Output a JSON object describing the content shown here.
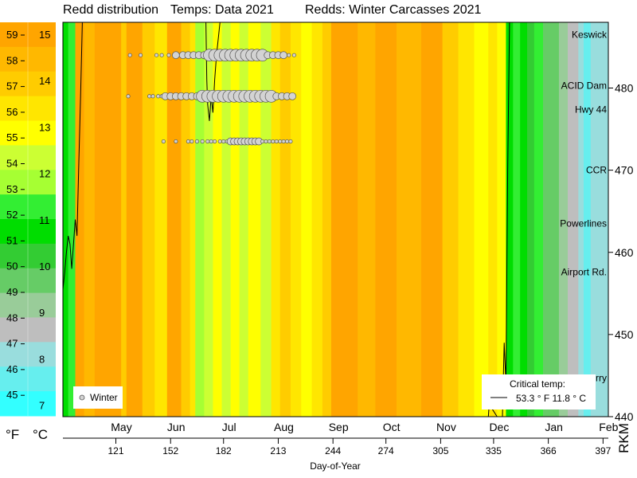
{
  "header": {
    "title": "Redd distribution",
    "temps": "Temps: Data 2021",
    "redds": "Redds: Winter Carcasses 2021"
  },
  "colors": {
    "orange": "#ffa500",
    "yellow": "#ffff00",
    "green": "#00e000",
    "gray": "#bebebe",
    "cyan": "#00ffff",
    "redd_fill": "#d3d3d3"
  },
  "legend_scale": {
    "f_label": "°F",
    "c_label": "°C",
    "f_ticks": [
      "59",
      "58",
      "57",
      "56",
      "55",
      "54",
      "53",
      "52",
      "51",
      "50",
      "49",
      "48",
      "47",
      "46",
      "45"
    ],
    "c_ticks": [
      "15",
      "14",
      "13",
      "12",
      "11",
      "10",
      "9",
      "8",
      "7"
    ],
    "bands": [
      "#ffa500",
      "#ffb800",
      "#ffcc00",
      "#ffe600",
      "#ffff00",
      "#ccff33",
      "#a6ff33",
      "#33ee33",
      "#00dd00",
      "#33cc33",
      "#66cc66",
      "#99cc99",
      "#bebebe",
      "#99dddd",
      "#66eeee",
      "#33ffff"
    ]
  },
  "landmarks": [
    "Keswick",
    "ACID Dam",
    "Hwy 44",
    "CCR",
    "Powerlines",
    "Airport Rd.",
    "Balls Ferry"
  ],
  "legend": {
    "series": "Winter"
  },
  "critical": {
    "title": "Critical temp:",
    "value": "53.3 ° F   11.8 ° C"
  },
  "chart_data": {
    "type": "heatmap",
    "title": "Redd distribution",
    "xlabel": "Day-of-Year",
    "ylabel": "RKM",
    "xlim": [
      91,
      400
    ],
    "ylim": [
      440,
      488
    ],
    "x_ticks": [
      121,
      152,
      182,
      213,
      244,
      274,
      305,
      335,
      366,
      397
    ],
    "month_ticks": [
      "May",
      "Jun",
      "Jul",
      "Aug",
      "Sep",
      "Oct",
      "Nov",
      "Dec",
      "Jan",
      "Feb"
    ],
    "y_ticks": [
      440,
      450,
      460,
      470,
      480
    ],
    "color_scale_f": [
      45,
      59
    ],
    "color_scale_c": [
      7,
      15
    ],
    "critical_temp_f": 53.3,
    "critical_temp_c": 11.8,
    "heat_columns": [
      {
        "x0": 91,
        "x1": 94,
        "color": "#00dd00"
      },
      {
        "x0": 94,
        "x1": 98,
        "color": "#33ee33"
      },
      {
        "x0": 98,
        "x1": 103,
        "color": "#ffa500"
      },
      {
        "x0": 103,
        "x1": 109,
        "color": "#ffb800"
      },
      {
        "x0": 109,
        "x1": 124,
        "color": "#ffa500"
      },
      {
        "x0": 124,
        "x1": 127,
        "color": "#ffcc00"
      },
      {
        "x0": 127,
        "x1": 136,
        "color": "#ffa500"
      },
      {
        "x0": 136,
        "x1": 143,
        "color": "#ffcc00"
      },
      {
        "x0": 143,
        "x1": 150,
        "color": "#ffe600"
      },
      {
        "x0": 150,
        "x1": 158,
        "color": "#ffa500"
      },
      {
        "x0": 158,
        "x1": 163,
        "color": "#ffcc00"
      },
      {
        "x0": 163,
        "x1": 166,
        "color": "#ffe600"
      },
      {
        "x0": 166,
        "x1": 171,
        "color": "#a6ff33"
      },
      {
        "x0": 171,
        "x1": 176,
        "color": "#ccff33"
      },
      {
        "x0": 176,
        "x1": 181,
        "color": "#ffff00"
      },
      {
        "x0": 181,
        "x1": 186,
        "color": "#ccff33"
      },
      {
        "x0": 186,
        "x1": 191,
        "color": "#ffff00"
      },
      {
        "x0": 191,
        "x1": 196,
        "color": "#ccff33"
      },
      {
        "x0": 196,
        "x1": 203,
        "color": "#ffff00"
      },
      {
        "x0": 203,
        "x1": 209,
        "color": "#ccff33"
      },
      {
        "x0": 209,
        "x1": 214,
        "color": "#ffe600"
      },
      {
        "x0": 214,
        "x1": 220,
        "color": "#ffcc00"
      },
      {
        "x0": 220,
        "x1": 226,
        "color": "#ffe600"
      },
      {
        "x0": 226,
        "x1": 232,
        "color": "#ffff00"
      },
      {
        "x0": 232,
        "x1": 238,
        "color": "#ffe600"
      },
      {
        "x0": 238,
        "x1": 243,
        "color": "#ffcc00"
      },
      {
        "x0": 243,
        "x1": 258,
        "color": "#ffa500"
      },
      {
        "x0": 258,
        "x1": 268,
        "color": "#ffb800"
      },
      {
        "x0": 268,
        "x1": 280,
        "color": "#ffa500"
      },
      {
        "x0": 280,
        "x1": 294,
        "color": "#ffb800"
      },
      {
        "x0": 294,
        "x1": 306,
        "color": "#ffa500"
      },
      {
        "x0": 306,
        "x1": 315,
        "color": "#ffcc00"
      },
      {
        "x0": 315,
        "x1": 324,
        "color": "#ffe600"
      },
      {
        "x0": 324,
        "x1": 332,
        "color": "#ffff00"
      },
      {
        "x0": 332,
        "x1": 337,
        "color": "#ffe600"
      },
      {
        "x0": 337,
        "x1": 342,
        "color": "#ffff00"
      },
      {
        "x0": 342,
        "x1": 346,
        "color": "#00dd00"
      },
      {
        "x0": 346,
        "x1": 350,
        "color": "#33ee33"
      },
      {
        "x0": 350,
        "x1": 354,
        "color": "#00dd00"
      },
      {
        "x0": 354,
        "x1": 358,
        "color": "#33cc33"
      },
      {
        "x0": 358,
        "x1": 363,
        "color": "#33ee33"
      },
      {
        "x0": 363,
        "x1": 368,
        "color": "#66cc66"
      },
      {
        "x0": 368,
        "x1": 372,
        "color": "#66cc66"
      },
      {
        "x0": 372,
        "x1": 377,
        "color": "#99cc99"
      },
      {
        "x0": 377,
        "x1": 383,
        "color": "#bebebe"
      },
      {
        "x0": 383,
        "x1": 386,
        "color": "#99dddd"
      },
      {
        "x0": 386,
        "x1": 390,
        "color": "#66eeee"
      },
      {
        "x0": 390,
        "x1": 400,
        "color": "#99dddd"
      }
    ],
    "series": [
      {
        "name": "Winter",
        "rows": [
          {
            "rkm": 484,
            "points": [
              [
                129,
                1
              ],
              [
                135,
                1
              ],
              [
                144,
                1
              ],
              [
                147,
                1
              ],
              [
                151,
                1
              ],
              [
                155,
                2
              ],
              [
                159,
                2
              ],
              [
                162,
                2
              ],
              [
                165,
                2
              ],
              [
                168,
                2
              ],
              [
                171,
                2
              ],
              [
                174,
                3
              ],
              [
                177,
                3
              ],
              [
                180,
                3
              ],
              [
                183,
                3
              ],
              [
                186,
                3
              ],
              [
                189,
                3
              ],
              [
                192,
                3
              ],
              [
                195,
                3
              ],
              [
                198,
                3
              ],
              [
                201,
                3
              ],
              [
                204,
                3
              ],
              [
                207,
                2
              ],
              [
                210,
                2
              ],
              [
                213,
                2
              ],
              [
                216,
                2
              ],
              [
                219,
                1
              ],
              [
                222,
                1
              ]
            ]
          },
          {
            "rkm": 479,
            "points": [
              [
                128,
                1
              ],
              [
                140,
                1
              ],
              [
                142,
                1
              ],
              [
                145,
                1
              ],
              [
                147,
                1
              ],
              [
                149,
                2
              ],
              [
                152,
                2
              ],
              [
                155,
                2
              ],
              [
                158,
                2
              ],
              [
                161,
                2
              ],
              [
                164,
                2
              ],
              [
                167,
                2
              ],
              [
                170,
                3
              ],
              [
                173,
                3
              ],
              [
                176,
                3
              ],
              [
                179,
                3
              ],
              [
                182,
                3
              ],
              [
                185,
                3
              ],
              [
                188,
                3
              ],
              [
                191,
                3
              ],
              [
                194,
                3
              ],
              [
                197,
                3
              ],
              [
                200,
                3
              ],
              [
                203,
                3
              ],
              [
                206,
                3
              ],
              [
                209,
                3
              ],
              [
                212,
                2
              ],
              [
                215,
                2
              ],
              [
                218,
                2
              ],
              [
                221,
                2
              ]
            ]
          },
          {
            "rkm": 473.5,
            "points": [
              [
                148,
                1
              ],
              [
                155,
                1
              ],
              [
                162,
                1
              ],
              [
                164,
                1
              ],
              [
                167,
                1
              ],
              [
                170,
                1
              ],
              [
                173,
                1
              ],
              [
                175,
                1
              ],
              [
                177,
                1
              ],
              [
                180,
                1
              ],
              [
                182,
                1
              ],
              [
                184,
                1
              ],
              [
                186,
                2
              ],
              [
                188,
                2
              ],
              [
                190,
                2
              ],
              [
                192,
                2
              ],
              [
                194,
                2
              ],
              [
                196,
                2
              ],
              [
                198,
                2
              ],
              [
                200,
                2
              ],
              [
                202,
                2
              ],
              [
                204,
                1
              ],
              [
                206,
                1
              ],
              [
                208,
                1
              ],
              [
                210,
                1
              ],
              [
                212,
                1
              ],
              [
                214,
                1
              ],
              [
                216,
                1
              ],
              [
                218,
                1
              ],
              [
                220,
                1
              ]
            ]
          }
        ]
      }
    ]
  }
}
